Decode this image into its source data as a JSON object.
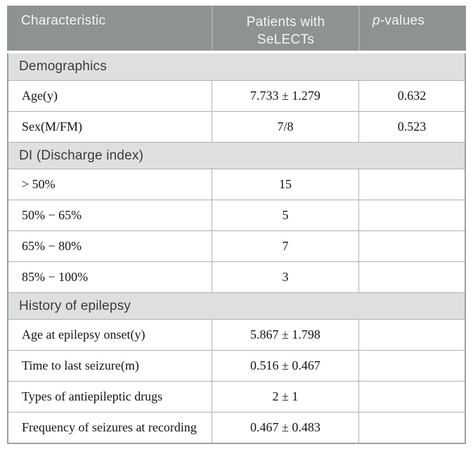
{
  "table": {
    "header": {
      "characteristic": "Characteristic",
      "patients_line1": "Patients with",
      "patients_line2": "SeLECTs",
      "p_italic": "p",
      "p_rest": "-values"
    },
    "sections": [
      {
        "title": "Demographics",
        "rows": [
          {
            "label": "Age(y)",
            "value": "7.733 ± 1.279",
            "p": "0.632"
          },
          {
            "label": "Sex(M/FM)",
            "value": "7/8",
            "p": "0.523"
          }
        ]
      },
      {
        "title": "DI (Discharge index)",
        "rows": [
          {
            "label": "> 50%",
            "value": "15",
            "p": ""
          },
          {
            "label": "50% − 65%",
            "value": "5",
            "p": ""
          },
          {
            "label": "65% − 80%",
            "value": "7",
            "p": ""
          },
          {
            "label": "85% − 100%",
            "value": "3",
            "p": ""
          }
        ]
      },
      {
        "title": "History of epilepsy",
        "rows": [
          {
            "label": "Age at epilepsy onset(y)",
            "value": "5.867 ± 1.798",
            "p": ""
          },
          {
            "label": "Time to last seizure(m)",
            "value": "0.516 ± 0.467",
            "p": ""
          },
          {
            "label": "Types of antiepileptic drugs",
            "value": "2 ± 1",
            "p": ""
          },
          {
            "label": "Frequency of seizures at recording",
            "value": "0.467 ± 0.483",
            "p": ""
          }
        ]
      }
    ],
    "colors": {
      "header_bg": "#8D9293",
      "header_text": "#F4F5F5",
      "header_divider": "#A6ABAC",
      "section_bg": "#DEE0E0",
      "section_text": "#3B3B3B",
      "body_text": "#141414",
      "border_outer": "#9BA0A1",
      "border_inner": "#ADB2B2",
      "page_bg": "#FFFFFF"
    }
  }
}
